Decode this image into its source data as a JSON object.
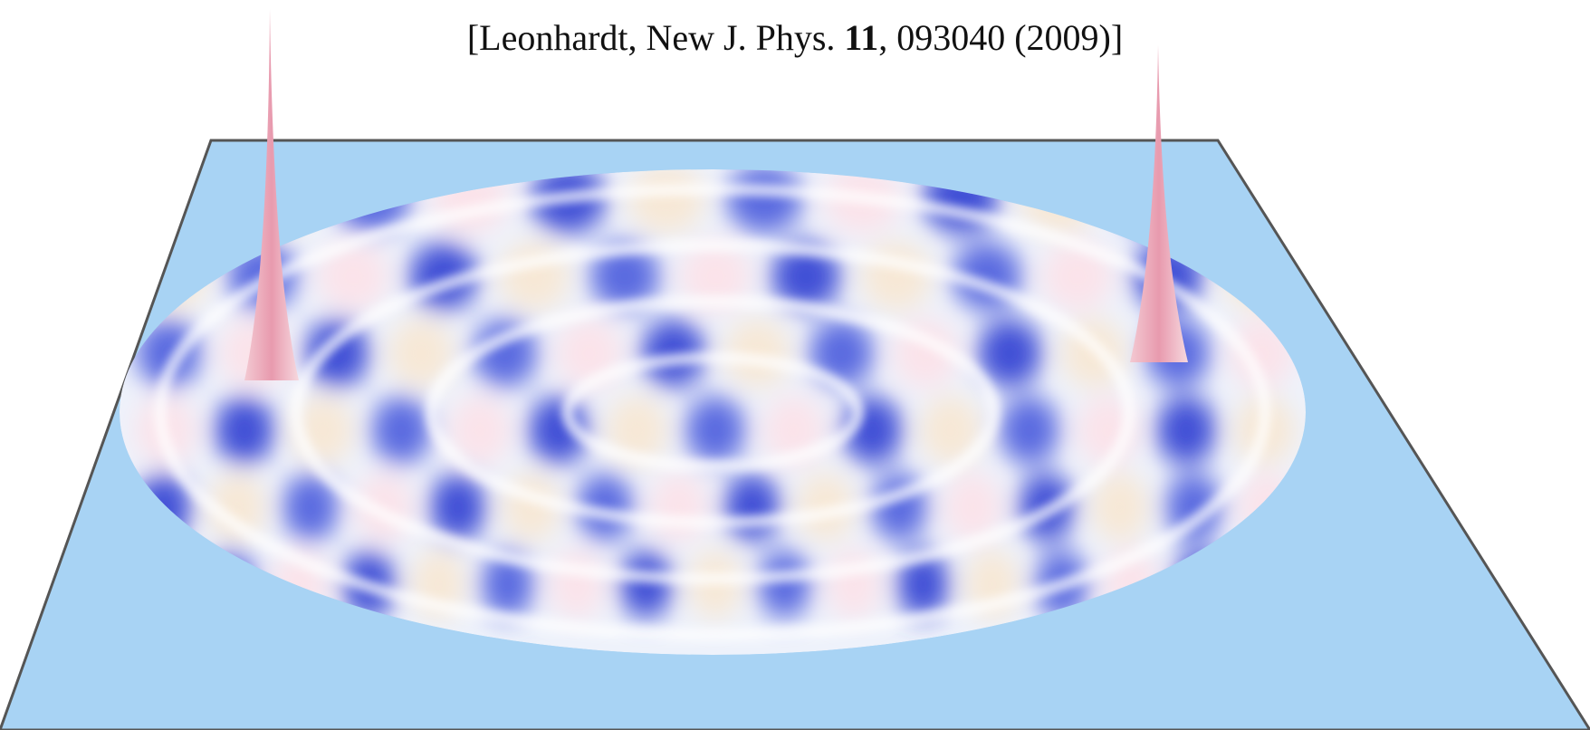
{
  "citation": {
    "source": "[Leonhardt, New J. Phys.",
    "volume": "11",
    "rest": ", 093040 (2009)]"
  }
}
